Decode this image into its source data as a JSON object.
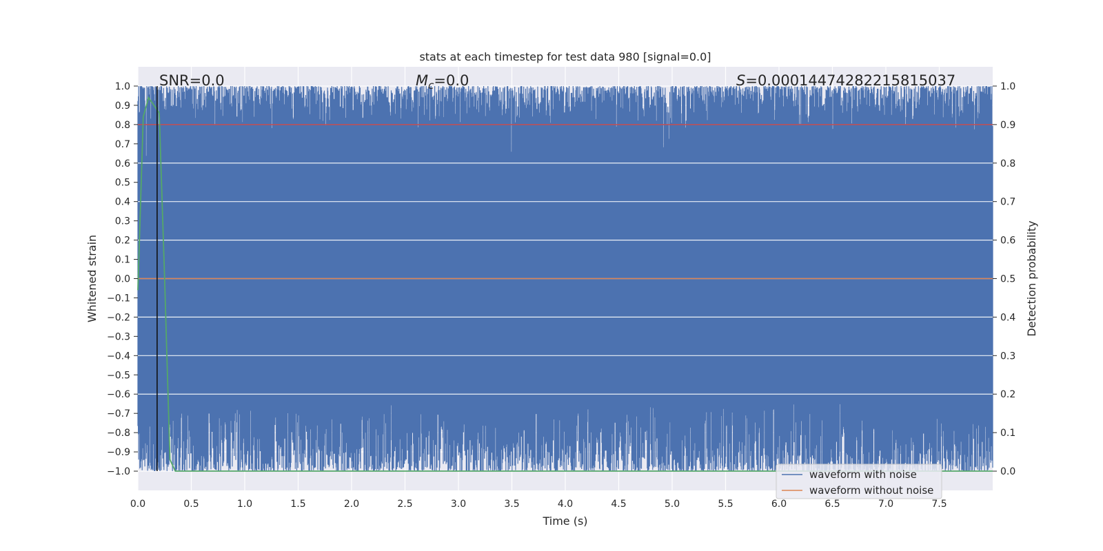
{
  "chart_data": {
    "type": "line",
    "title": "stats at each timestep for test data 980 [signal=0.0]",
    "xlabel": "Time (s)",
    "ylabel": "Whitened strain",
    "ylabel_right": "Detection probability",
    "xlim": [
      0.0,
      8.0
    ],
    "ylim": [
      -1.1,
      1.1
    ],
    "ylim_right": [
      -0.05,
      1.05
    ],
    "xticks": [
      "0.0",
      "0.5",
      "1.0",
      "1.5",
      "2.0",
      "2.5",
      "3.0",
      "3.5",
      "4.0",
      "4.5",
      "5.0",
      "5.5",
      "6.0",
      "6.5",
      "7.0",
      "7.5"
    ],
    "yticks": [
      "1.0",
      "0.9",
      "0.8",
      "0.7",
      "0.6",
      "0.5",
      "0.4",
      "0.3",
      "0.2",
      "0.1",
      "0.0",
      "−0.1",
      "−0.2",
      "−0.3",
      "−0.4",
      "−0.5",
      "−0.6",
      "−0.7",
      "−0.8",
      "−0.9",
      "−1.0"
    ],
    "yticks_right": [
      "1.0",
      "0.9",
      "0.8",
      "0.7",
      "0.6",
      "0.5",
      "0.4",
      "0.3",
      "0.2",
      "0.1",
      "0.0"
    ],
    "grid": true,
    "annotations": {
      "snr": "SNR=0.0",
      "mc_symbol": "M",
      "mc_sub": "c",
      "mc_value": "=0.0",
      "s_symbol": "S",
      "s_value": "=0.00014474282215815037"
    },
    "vertical_line_x": 0.18,
    "threshold_y_right": 0.9,
    "series": [
      {
        "name": "waveform with noise",
        "color": "#4c72b0",
        "description_values": "noise filling the range between about -1.0 and 1.0"
      },
      {
        "name": "waveform without noise",
        "color": "#dd8452",
        "x": [
          0.0,
          8.0
        ],
        "y": [
          0.0,
          0.0
        ]
      },
      {
        "name": "",
        "color": "#55a868",
        "axis": "right",
        "x": [
          0.0,
          0.05,
          0.1,
          0.15,
          0.2,
          0.25,
          0.3,
          0.35,
          0.4,
          8.0
        ],
        "y": [
          0.47,
          0.92,
          0.97,
          0.95,
          0.93,
          0.5,
          0.03,
          0.0,
          0.0,
          0.0
        ]
      }
    ],
    "legend": {
      "position": "lower-right",
      "entries": [
        "waveform with noise",
        "waveform without noise"
      ]
    }
  }
}
